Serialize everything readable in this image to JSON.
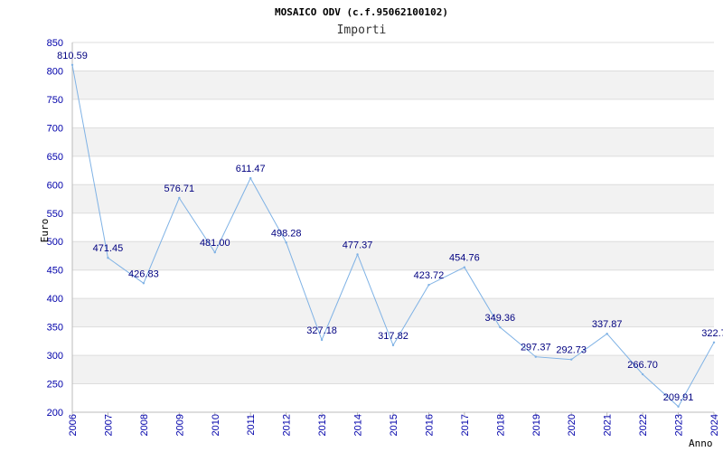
{
  "chart_data": {
    "type": "line",
    "title": "MOSAICO ODV (c.f.95062100102)",
    "subtitle": "Importi",
    "xlabel": "Anno",
    "ylabel": "Euro",
    "ylim": [
      200,
      850
    ],
    "y_ticks": [
      "200",
      "250",
      "300",
      "350",
      "400",
      "450",
      "500",
      "550",
      "600",
      "650",
      "700",
      "750",
      "800",
      "850"
    ],
    "categories": [
      "2006",
      "2007",
      "2008",
      "2009",
      "2010",
      "2011",
      "2012",
      "2013",
      "2014",
      "2015",
      "2016",
      "2017",
      "2018",
      "2019",
      "2020",
      "2021",
      "2022",
      "2023",
      "2024"
    ],
    "values": [
      810.59,
      471.45,
      426.83,
      576.71,
      481.0,
      611.47,
      498.28,
      327.18,
      477.37,
      317.82,
      423.72,
      454.76,
      349.36,
      297.37,
      292.73,
      337.87,
      266.7,
      209.91,
      322.7
    ],
    "value_labels": [
      "810.59",
      "471.45",
      "426.83",
      "576.71",
      "481.00",
      "611.47",
      "498.28",
      "327.18",
      "477.37",
      "317.82",
      "423.72",
      "454.76",
      "349.36",
      "297.37",
      "292.73",
      "337.87",
      "266.70",
      "209.91",
      "322.7"
    ],
    "grid": true,
    "colors": {
      "line": "#7fb2e5",
      "band": "#f2f2f2",
      "tick_text": "#0000aa",
      "label_text": "#000080"
    }
  }
}
